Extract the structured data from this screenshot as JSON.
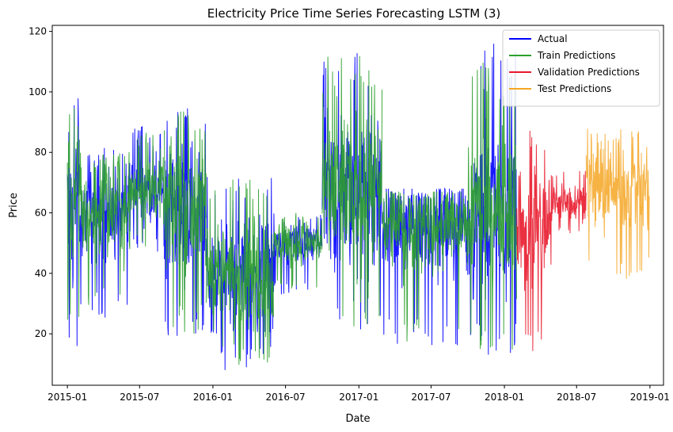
{
  "chart_data": {
    "type": "line",
    "title": "Electricity Price Time Series Forecasting LSTM (3)",
    "xlabel": "Date",
    "ylabel": "Price",
    "x_range": [
      "2014-11-24",
      "2019-02-04"
    ],
    "ylim": [
      3,
      122
    ],
    "x_ticks": [
      "2015-01",
      "2015-07",
      "2016-01",
      "2016-07",
      "2017-01",
      "2017-07",
      "2018-01",
      "2018-07",
      "2019-01"
    ],
    "y_ticks": [
      20,
      40,
      60,
      80,
      100,
      120
    ],
    "grid": false,
    "legend_position": "top-right",
    "series": [
      {
        "name": "Actual",
        "color": "#0000ff",
        "segments": [
          {
            "start": "2015-01-01",
            "end": "2015-02-01",
            "min": 13,
            "max": 101,
            "center": 62
          },
          {
            "start": "2015-02-01",
            "end": "2015-06-01",
            "min": 25,
            "max": 83,
            "center": 60
          },
          {
            "start": "2015-06-01",
            "end": "2015-09-01",
            "min": 47,
            "max": 89,
            "center": 68
          },
          {
            "start": "2015-09-01",
            "end": "2015-12-15",
            "min": 18,
            "max": 99,
            "center": 62
          },
          {
            "start": "2015-12-15",
            "end": "2016-06-01",
            "min": 8,
            "max": 72,
            "center": 40
          },
          {
            "start": "2016-06-01",
            "end": "2016-10-01",
            "min": 33,
            "max": 60,
            "center": 50
          },
          {
            "start": "2016-10-01",
            "end": "2017-03-01",
            "min": 20,
            "max": 113,
            "center": 66
          },
          {
            "start": "2017-03-01",
            "end": "2017-10-01",
            "min": 15,
            "max": 68,
            "center": 55
          },
          {
            "start": "2017-10-01",
            "end": "2018-02-01",
            "min": 12,
            "max": 117,
            "center": 60
          }
        ]
      },
      {
        "name": "Train Predictions",
        "color": "#2ca02c",
        "segments": [
          {
            "start": "2015-01-01",
            "end": "2015-02-01",
            "min": 15,
            "max": 95,
            "center": 62
          },
          {
            "start": "2015-02-01",
            "end": "2015-06-01",
            "min": 27,
            "max": 80,
            "center": 60
          },
          {
            "start": "2015-06-01",
            "end": "2015-09-01",
            "min": 48,
            "max": 87,
            "center": 68
          },
          {
            "start": "2015-09-01",
            "end": "2015-12-15",
            "min": 20,
            "max": 95,
            "center": 62
          },
          {
            "start": "2015-12-15",
            "end": "2016-06-01",
            "min": 9,
            "max": 72,
            "center": 40
          },
          {
            "start": "2016-06-01",
            "end": "2016-10-01",
            "min": 34,
            "max": 60,
            "center": 50
          },
          {
            "start": "2016-10-01",
            "end": "2017-03-01",
            "min": 22,
            "max": 112,
            "center": 66
          },
          {
            "start": "2017-03-01",
            "end": "2017-10-01",
            "min": 16,
            "max": 67,
            "center": 55
          },
          {
            "start": "2017-10-01",
            "end": "2018-02-01",
            "min": 14,
            "max": 110,
            "center": 60
          }
        ]
      },
      {
        "name": "Validation Predictions",
        "color": "#e8192c",
        "segments": [
          {
            "start": "2018-02-01",
            "end": "2018-05-01",
            "min": 10,
            "max": 88,
            "center": 55
          },
          {
            "start": "2018-05-01",
            "end": "2018-07-25",
            "min": 52,
            "max": 74,
            "center": 64
          }
        ]
      },
      {
        "name": "Test Predictions",
        "color": "#f5a623",
        "segments": [
          {
            "start": "2018-07-25",
            "end": "2018-12-31",
            "min": 38,
            "max": 88,
            "center": 68
          }
        ]
      }
    ]
  }
}
